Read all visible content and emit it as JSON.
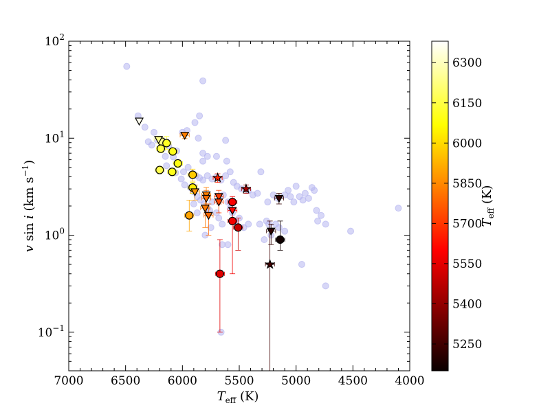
{
  "chart_data": {
    "type": "scatter",
    "title": "",
    "xlabel_parts": [
      "T",
      "eff",
      " (K)"
    ],
    "ylabel_parts": [
      "v",
      " sin ",
      "i",
      " (km s",
      "−1",
      ")"
    ],
    "colorbar_label_parts": [
      "T",
      "eff",
      " (K)"
    ],
    "xlim": [
      7000,
      4000
    ],
    "ylim": [
      0.04,
      100
    ],
    "yscale": "log",
    "x_ticks": [
      "7000",
      "6500",
      "6000",
      "5500",
      "5000",
      "4500",
      "4000"
    ],
    "y_ticks": [
      {
        "base": "10",
        "exp": "2"
      },
      {
        "base": "10",
        "exp": "1"
      },
      {
        "base": "10",
        "exp": "0"
      },
      {
        "base": "10",
        "exp": "−1"
      }
    ],
    "colorbar_range": [
      5150,
      6380
    ],
    "colorbar_ticks": [
      "6300",
      "6150",
      "6000",
      "5850",
      "5700",
      "5550",
      "5400",
      "5250"
    ],
    "colormap": "hot",
    "background_color": "#b6b6f0",
    "background_points": [
      [
        6490,
        55
      ],
      [
        5820,
        39
      ],
      [
        6390,
        17
      ],
      [
        6330,
        13
      ],
      [
        6250,
        11.5
      ],
      [
        6270,
        8.5
      ],
      [
        6180,
        8.2
      ],
      [
        6150,
        6.5
      ],
      [
        5960,
        12
      ],
      [
        5890,
        14.5
      ],
      [
        5850,
        17
      ],
      [
        5860,
        10
      ],
      [
        5820,
        7
      ],
      [
        5780,
        6.5
      ],
      [
        5820,
        5.8
      ],
      [
        5700,
        6.5
      ],
      [
        5620,
        9.5
      ],
      [
        5610,
        5.8
      ],
      [
        5990,
        4.5
      ],
      [
        5950,
        5
      ],
      [
        5910,
        4.3
      ],
      [
        5880,
        4.1
      ],
      [
        5850,
        3.9
      ],
      [
        5820,
        3.7
      ],
      [
        5780,
        4.1
      ],
      [
        5740,
        3.8
      ],
      [
        5700,
        4
      ],
      [
        5660,
        3.7
      ],
      [
        5620,
        4.1
      ],
      [
        5580,
        4.5
      ],
      [
        5550,
        3.5
      ],
      [
        5520,
        3.2
      ],
      [
        5480,
        3
      ],
      [
        5420,
        2.9
      ],
      [
        5380,
        2.6
      ],
      [
        5340,
        2.7
      ],
      [
        5310,
        4.5
      ],
      [
        5250,
        2.2
      ],
      [
        5200,
        2.6
      ],
      [
        5160,
        2.4
      ],
      [
        5100,
        2.6
      ],
      [
        5070,
        2.9
      ],
      [
        5050,
        2.5
      ],
      [
        5020,
        2.2
      ],
      [
        5000,
        3.2
      ],
      [
        4970,
        2.5
      ],
      [
        4940,
        2.3
      ],
      [
        4920,
        2.7
      ],
      [
        4890,
        2.4
      ],
      [
        4860,
        3.1
      ],
      [
        4840,
        2.9
      ],
      [
        4820,
        1.8
      ],
      [
        4810,
        1.4
      ],
      [
        4780,
        1.6
      ],
      [
        4740,
        1.3
      ],
      [
        4520,
        1.1
      ],
      [
        4100,
        1.9
      ],
      [
        6010,
        3.8
      ],
      [
        5980,
        3.3
      ],
      [
        5930,
        3.1
      ],
      [
        5900,
        2.8
      ],
      [
        5870,
        2.5
      ],
      [
        5840,
        2.3
      ],
      [
        5810,
        2.1
      ],
      [
        5780,
        1.9
      ],
      [
        5760,
        1.8
      ],
      [
        5740,
        2.2
      ],
      [
        5700,
        1.7
      ],
      [
        5680,
        1.5
      ],
      [
        5650,
        1.3
      ],
      [
        5640,
        2.6
      ],
      [
        5600,
        2.2
      ],
      [
        5580,
        1.9
      ],
      [
        5560,
        1.7
      ],
      [
        5540,
        1.4
      ],
      [
        5500,
        1.5
      ],
      [
        5460,
        1.2
      ],
      [
        5420,
        1.3
      ],
      [
        5320,
        1.3
      ],
      [
        5280,
        0.9
      ],
      [
        5260,
        1.4
      ],
      [
        5240,
        1.3
      ],
      [
        5220,
        1
      ],
      [
        5180,
        1.3
      ],
      [
        5150,
        1.2
      ],
      [
        5100,
        1.1
      ],
      [
        4950,
        0.5
      ],
      [
        4740,
        0.3
      ],
      [
        5660,
        0.1
      ],
      [
        5650,
        0.8
      ],
      [
        5600,
        0.8
      ],
      [
        5800,
        1
      ],
      [
        5750,
        1.2
      ],
      [
        5870,
        1.7
      ],
      [
        5900,
        2.1
      ],
      [
        5950,
        1.6
      ],
      [
        6300,
        9.2
      ],
      [
        6220,
        9.5
      ],
      [
        6120,
        8.3
      ],
      [
        6050,
        7.4
      ],
      [
        6080,
        6.4
      ],
      [
        6000,
        11.5
      ],
      [
        6140,
        5.2
      ],
      [
        6060,
        4.4
      ]
    ],
    "circles": [
      {
        "x": 6180,
        "y": 9.2,
        "yerr": [
          0.9,
          0.9
        ],
        "xerr": 40,
        "teff": 6230
      },
      {
        "x": 6140,
        "y": 8.9,
        "yerr": [
          1.2,
          1.5
        ],
        "xerr": 40,
        "teff": 6110
      },
      {
        "x": 6190,
        "y": 7.8,
        "yerr": [
          0.7,
          0.7
        ],
        "xerr": 40,
        "teff": 6150
      },
      {
        "x": 6085,
        "y": 7.3,
        "yerr": [
          0.6,
          0.6
        ],
        "xerr": 40,
        "teff": 6100
      },
      {
        "x": 6040,
        "y": 5.5,
        "yerr": [
          0.5,
          0.5
        ],
        "xerr": 40,
        "teff": 6090
      },
      {
        "x": 6200,
        "y": 4.7,
        "yerr": [
          0.4,
          0.4
        ],
        "xerr": 40,
        "teff": 6160
      },
      {
        "x": 6090,
        "y": 4.5,
        "yerr": [
          0.4,
          0.4
        ],
        "xerr": 40,
        "teff": 6100
      },
      {
        "x": 5910,
        "y": 4.2,
        "yerr": [
          0.6,
          0.6
        ],
        "xerr": 40,
        "teff": 5970
      },
      {
        "x": 5910,
        "y": 3.1,
        "yerr": [
          0.4,
          0.4
        ],
        "xerr": 40,
        "teff": 6030
      },
      {
        "x": 5940,
        "y": 1.6,
        "yerr": [
          0.5,
          0.7
        ],
        "xerr": 40,
        "teff": 5900
      },
      {
        "x": 5560,
        "y": 2.2,
        "yerr": [
          0.3,
          0.3
        ],
        "xerr": 40,
        "teff": 5570
      },
      {
        "x": 5560,
        "y": 1.4,
        "yerr": [
          1.0,
          0.8
        ],
        "xerr": 40,
        "teff": 5560
      },
      {
        "x": 5510,
        "y": 1.2,
        "yerr": [
          0.5,
          0.3
        ],
        "xerr": 40,
        "teff": 5480
      },
      {
        "x": 5670,
        "y": 0.4,
        "yerr": [
          0.3,
          0.5
        ],
        "xerr": 40,
        "teff": 5530
      },
      {
        "x": 5140,
        "y": 0.9,
        "yerr": [
          0.2,
          0.5
        ],
        "xerr": 40,
        "teff": 5160
      }
    ],
    "triangles": [
      {
        "x": 6380,
        "y": 15,
        "yerr": [
          0.8,
          0.8
        ],
        "xerr": 40,
        "teff": 6360
      },
      {
        "x": 6210,
        "y": 9.7,
        "yerr": [
          0.8,
          0.8
        ],
        "xerr": 40,
        "teff": 6240
      },
      {
        "x": 5980,
        "y": 10.7,
        "yerr": [
          0.8,
          0.8
        ],
        "xerr": 40,
        "teff": 5830
      },
      {
        "x": 5890,
        "y": 2.8,
        "yerr": [
          0.5,
          0.5
        ],
        "xerr": 40,
        "teff": 5870
      },
      {
        "x": 5790,
        "y": 2.6,
        "yerr": [
          0.5,
          0.5
        ],
        "xerr": 40,
        "teff": 5830
      },
      {
        "x": 5790,
        "y": 2.4,
        "yerr": [
          0.7,
          0.5
        ],
        "xerr": 40,
        "teff": 5800
      },
      {
        "x": 5800,
        "y": 1.9,
        "yerr": [
          0.7,
          0.5
        ],
        "xerr": 40,
        "teff": 5820
      },
      {
        "x": 5770,
        "y": 1.6,
        "yerr": [
          0.6,
          0.5
        ],
        "xerr": 40,
        "teff": 5790
      },
      {
        "x": 5680,
        "y": 2.5,
        "yerr": [
          0.4,
          0.4
        ],
        "xerr": 40,
        "teff": 5710
      },
      {
        "x": 5680,
        "y": 2.2,
        "yerr": [
          0.5,
          0.4
        ],
        "xerr": 40,
        "teff": 5720
      },
      {
        "x": 5560,
        "y": 1.8,
        "yerr": [
          0.4,
          0.4
        ],
        "xerr": 40,
        "teff": 5580
      },
      {
        "x": 5220,
        "y": 1.1,
        "yerr": [
          0.3,
          0.2
        ],
        "xerr": 40,
        "teff": 5210
      },
      {
        "x": 5150,
        "y": 2.4,
        "yerr": [
          0.3,
          0.3
        ],
        "xerr": 40,
        "teff": 5220
      }
    ],
    "stars": [
      {
        "x": 5690,
        "y": 3.9,
        "yerr": [
          0.4,
          0.4
        ],
        "xerr": 40,
        "teff": 5660
      },
      {
        "x": 5440,
        "y": 3.0,
        "yerr": [
          0.3,
          0.3
        ],
        "xerr": 40,
        "teff": 5420
      },
      {
        "x": 5230,
        "y": 0.5,
        "yerr": [
          0.46,
          0.9
        ],
        "xerr": 40,
        "teff": 5250
      }
    ]
  }
}
